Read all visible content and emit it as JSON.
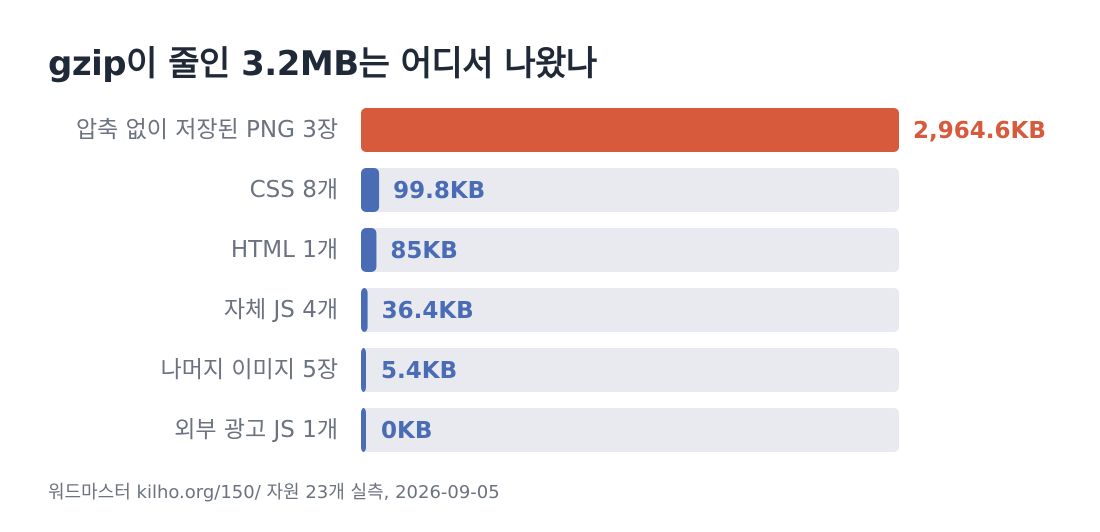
{
  "chart_data": {
    "type": "bar",
    "orientation": "horizontal",
    "title": "gzip이 줄인 3.2MB는 어디서 나왔나",
    "categories": [
      "압축 없이 저장된 PNG 3장",
      "CSS 8개",
      "HTML 1개",
      "자체 JS 4개",
      "나머지 이미지 5장",
      "외부 광고 JS 1개"
    ],
    "values": [
      2964.6,
      99.8,
      85,
      36.4,
      5.4,
      0
    ],
    "value_labels": [
      "2,964.6KB",
      "99.8KB",
      "85KB",
      "36.4KB",
      "5.4KB",
      "0KB"
    ],
    "unit": "KB",
    "xlim": [
      0,
      2964.6
    ],
    "highlight_index": 0,
    "grid": false,
    "legend": "none"
  },
  "colors": {
    "highlight": "#d65a3b",
    "bar": "#4a6cb5",
    "track": "#e8eaef",
    "highlight_label": "#d65a3b",
    "bar_label": "#4a6cb5"
  },
  "footer": {
    "source": "워드마스터 kilho.org/150/ 자원 23개 실측, 2026-09-05"
  }
}
